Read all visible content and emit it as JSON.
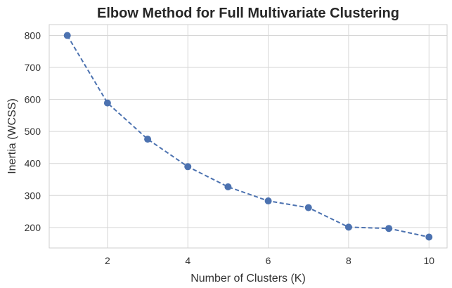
{
  "chart_data": {
    "type": "line",
    "title": "Elbow Method for Full Multivariate Clustering",
    "xlabel": "Number of Clusters (K)",
    "ylabel": "Inertia (WCSS)",
    "x": [
      1,
      2,
      3,
      4,
      5,
      6,
      7,
      8,
      9,
      10
    ],
    "series": [
      {
        "values": [
          800,
          589,
          476,
          390,
          327,
          283,
          262,
          201,
          197,
          170
        ],
        "color": "#4c72b0",
        "line_style": "dashed",
        "marker": "circle"
      }
    ],
    "xticks": [
      2,
      4,
      6,
      8,
      10
    ],
    "yticks": [
      200,
      300,
      400,
      500,
      600,
      700,
      800
    ],
    "xlim": [
      0.55,
      10.45
    ],
    "ylim": [
      136,
      834
    ],
    "grid": true,
    "legend": "none"
  }
}
